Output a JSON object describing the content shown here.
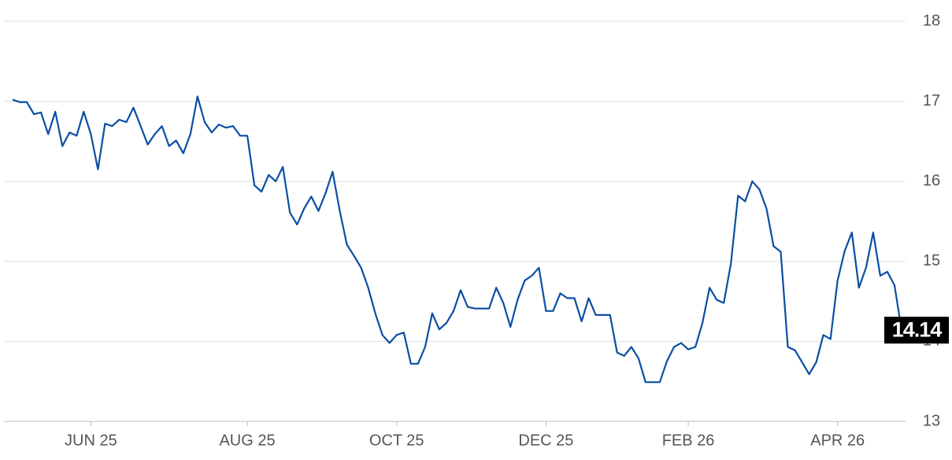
{
  "chart_data": {
    "type": "line",
    "categories": [
      null,
      null,
      null,
      null,
      null,
      null,
      null,
      null,
      null,
      null,
      null,
      "JUN 25",
      null,
      null,
      null,
      null,
      null,
      null,
      null,
      null,
      null,
      null,
      null,
      null,
      null,
      null,
      null,
      null,
      null,
      null,
      null,
      null,
      null,
      "AUG 25",
      null,
      null,
      null,
      null,
      null,
      null,
      null,
      null,
      null,
      null,
      null,
      null,
      null,
      null,
      null,
      null,
      null,
      null,
      null,
      null,
      "OCT 25",
      null,
      null,
      null,
      null,
      null,
      null,
      null,
      null,
      null,
      null,
      null,
      null,
      null,
      null,
      null,
      null,
      null,
      null,
      null,
      null,
      "DEC 25",
      null,
      null,
      null,
      null,
      null,
      null,
      null,
      null,
      null,
      null,
      null,
      null,
      null,
      null,
      null,
      null,
      null,
      null,
      null,
      "FEB 26",
      null,
      null,
      null,
      null,
      null,
      null,
      null,
      null,
      null,
      null,
      null,
      null,
      null,
      null,
      null,
      null,
      null,
      null,
      null,
      null,
      "APR 26",
      null,
      null,
      null,
      null,
      null,
      null,
      null,
      null,
      null
    ],
    "values": [
      17.02,
      16.99,
      16.99,
      16.84,
      16.86,
      16.59,
      16.87,
      16.44,
      16.61,
      16.57,
      16.87,
      16.59,
      16.15,
      16.72,
      16.69,
      16.77,
      16.74,
      16.92,
      16.69,
      16.46,
      16.59,
      16.69,
      16.44,
      16.51,
      16.35,
      16.59,
      17.06,
      16.74,
      16.61,
      16.71,
      16.67,
      16.69,
      16.57,
      16.57,
      15.95,
      15.87,
      16.08,
      16.0,
      16.18,
      15.61,
      15.46,
      15.66,
      15.81,
      15.63,
      15.85,
      16.12,
      15.63,
      15.21,
      15.07,
      14.92,
      14.67,
      14.35,
      14.08,
      13.98,
      14.08,
      14.11,
      13.72,
      13.72,
      13.93,
      14.35,
      14.15,
      14.23,
      14.38,
      14.64,
      14.43,
      14.41,
      14.41,
      14.41,
      14.67,
      14.48,
      14.18,
      14.52,
      14.76,
      14.82,
      14.92,
      14.38,
      14.38,
      14.6,
      14.54,
      14.54,
      14.25,
      14.54,
      14.33,
      14.33,
      14.33,
      13.86,
      13.82,
      13.93,
      13.79,
      13.49,
      13.49,
      13.49,
      13.75,
      13.93,
      13.98,
      13.9,
      13.93,
      14.23,
      14.67,
      14.52,
      14.48,
      14.97,
      15.82,
      15.75,
      16.0,
      15.9,
      15.66,
      15.19,
      15.12,
      13.93,
      13.89,
      13.74,
      13.59,
      13.74,
      14.08,
      14.03,
      14.76,
      15.13,
      15.36,
      14.67,
      14.92,
      15.36,
      14.82,
      14.87,
      14.7,
      14.14
    ],
    "color": "#0a4ea3",
    "ylim": [
      13,
      18
    ],
    "yticks": [
      13,
      14,
      15,
      16,
      17,
      18
    ],
    "grid": true
  }
}
